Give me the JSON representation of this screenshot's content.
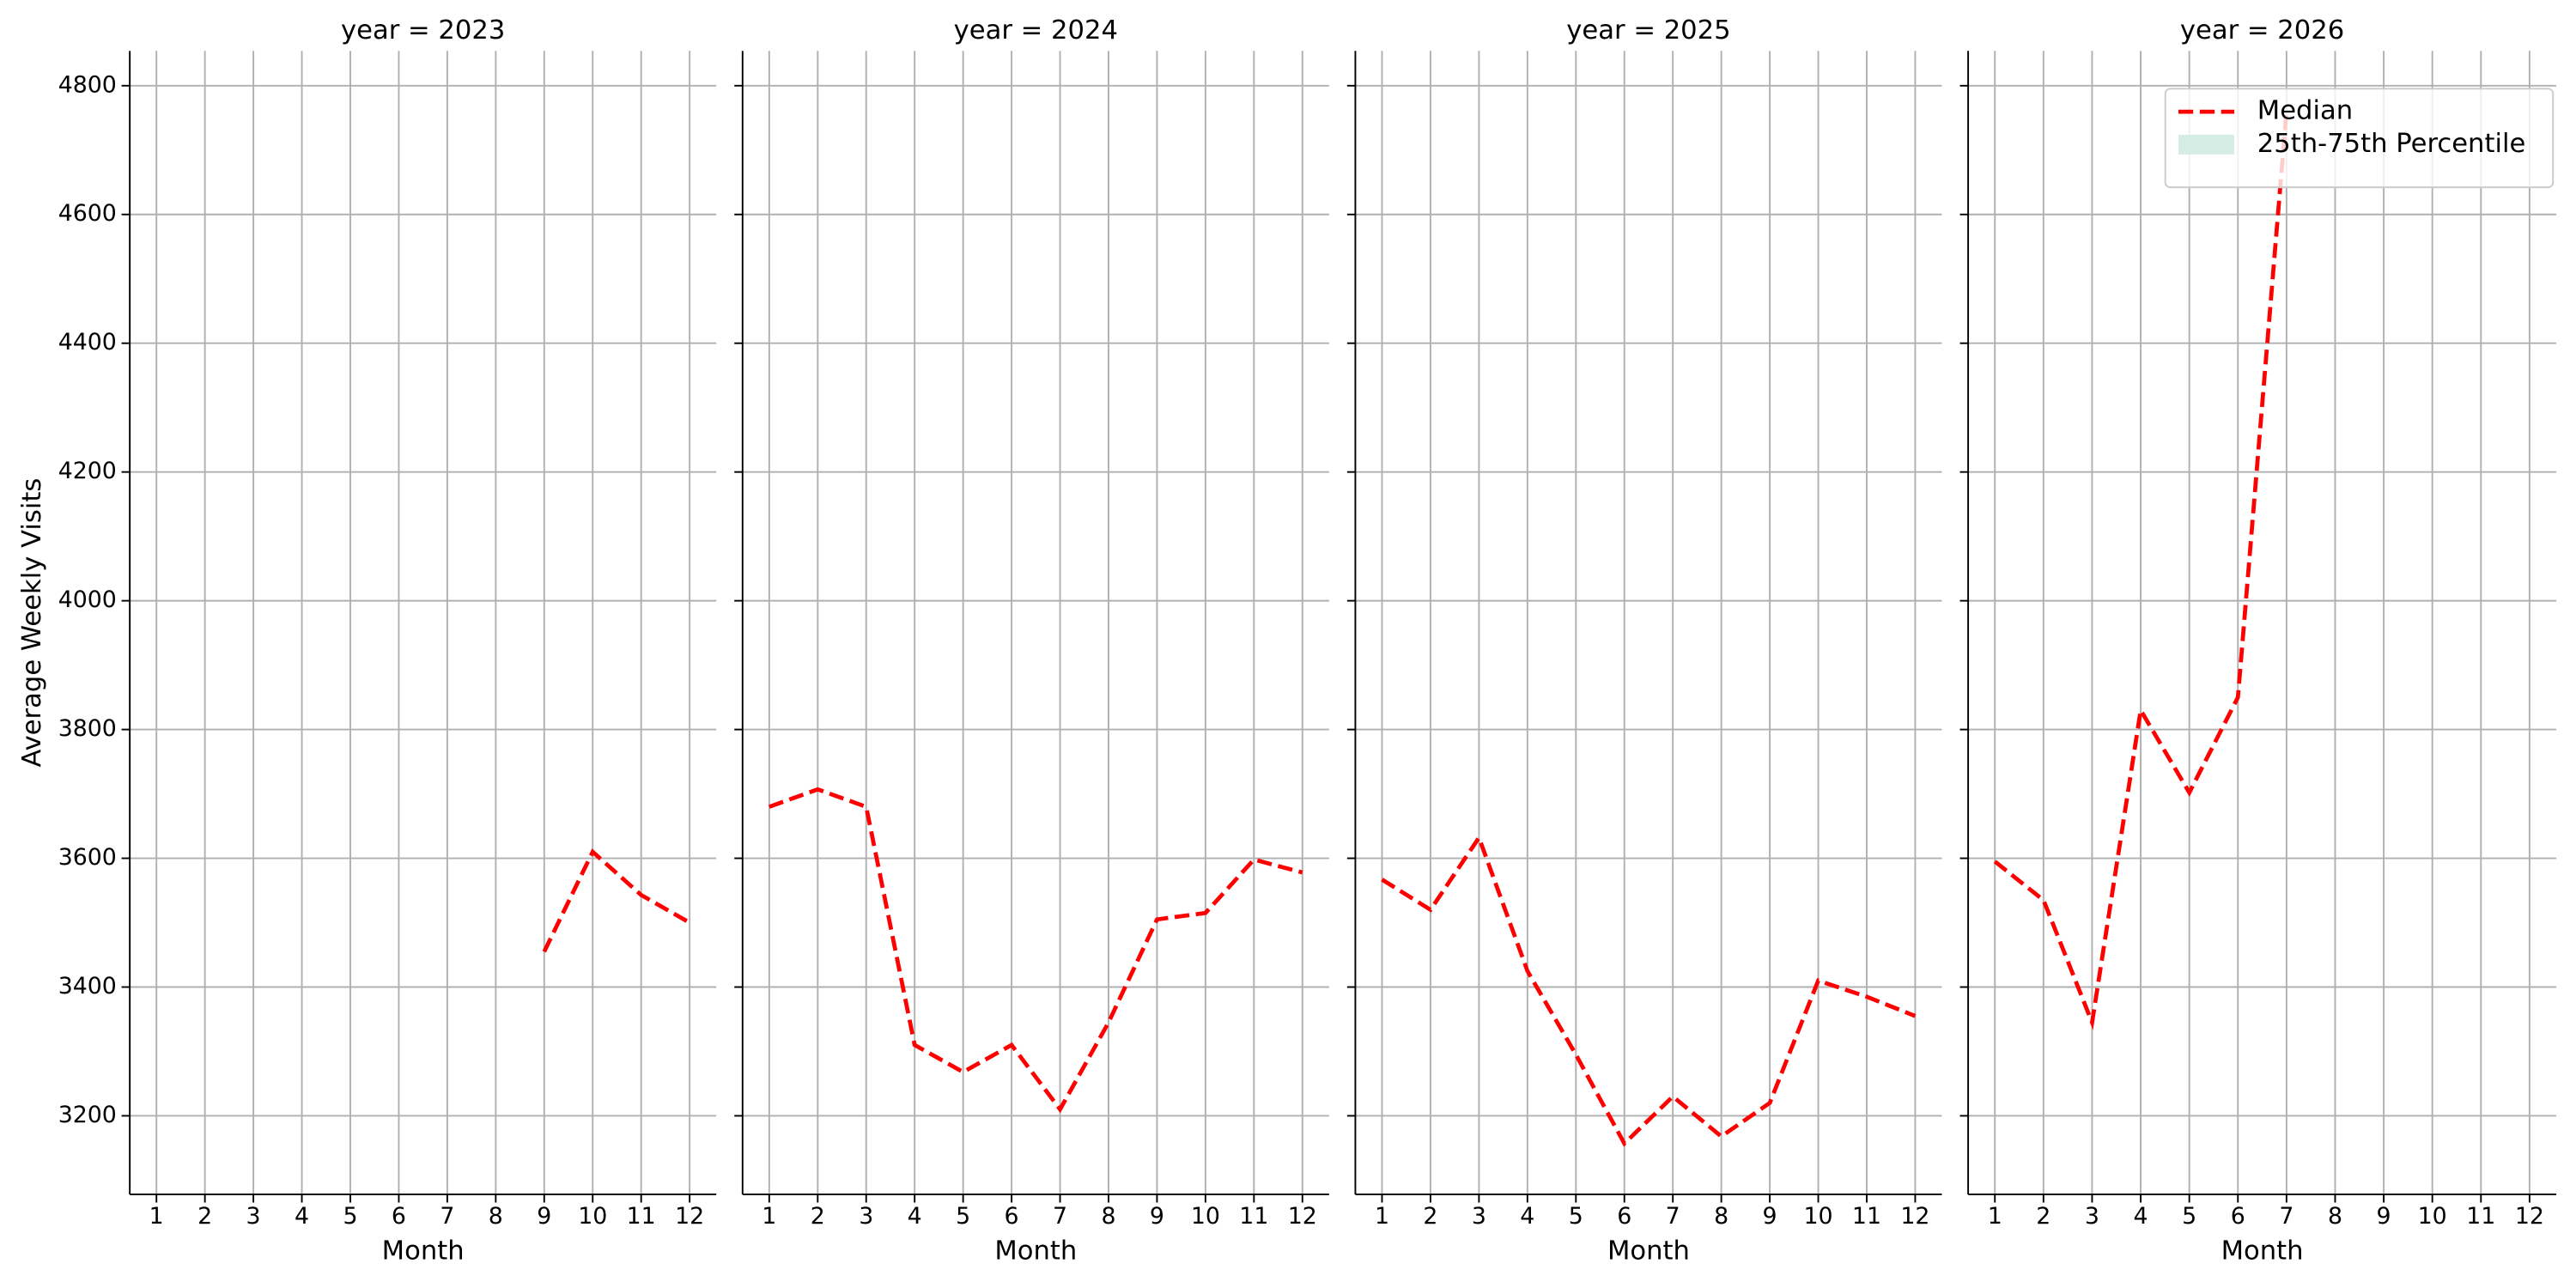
{
  "ylabel": "Average Weekly Visits",
  "chart_data": [
    {
      "type": "line",
      "title": "year = 2023",
      "xlabel": "Month",
      "x": [
        1,
        2,
        3,
        4,
        5,
        6,
        7,
        8,
        9,
        10,
        11,
        12
      ],
      "series": [
        {
          "name": "Median",
          "color": "#ff0000",
          "dashed": true,
          "values": [
            null,
            null,
            null,
            null,
            null,
            null,
            null,
            null,
            3455,
            3610,
            3543,
            3500
          ]
        }
      ],
      "xlim": [
        0.45,
        12.55
      ],
      "ylim": [
        3078,
        4854
      ],
      "xticks": [
        1,
        2,
        3,
        4,
        5,
        6,
        7,
        8,
        9,
        10,
        11,
        12
      ],
      "yticks": [
        3200,
        3400,
        3600,
        3800,
        4000,
        4200,
        4400,
        4600,
        4800
      ],
      "grid": true,
      "ytick_labels": true
    },
    {
      "type": "line",
      "title": "year = 2024",
      "xlabel": "Month",
      "x": [
        1,
        2,
        3,
        4,
        5,
        6,
        7,
        8,
        9,
        10,
        11,
        12
      ],
      "series": [
        {
          "name": "Median",
          "color": "#ff0000",
          "dashed": true,
          "values": [
            3680,
            3707,
            3680,
            3310,
            3268,
            3310,
            3210,
            3345,
            3505,
            3515,
            3598,
            3578
          ]
        }
      ],
      "xlim": [
        0.45,
        12.55
      ],
      "ylim": [
        3078,
        4854
      ],
      "xticks": [
        1,
        2,
        3,
        4,
        5,
        6,
        7,
        8,
        9,
        10,
        11,
        12
      ],
      "yticks": [
        3200,
        3400,
        3600,
        3800,
        4000,
        4200,
        4400,
        4600,
        4800
      ],
      "grid": true,
      "ytick_labels": false
    },
    {
      "type": "line",
      "title": "year = 2025",
      "xlabel": "Month",
      "x": [
        1,
        2,
        3,
        4,
        5,
        6,
        7,
        8,
        9,
        10,
        11,
        12
      ],
      "series": [
        {
          "name": "Median",
          "color": "#ff0000",
          "dashed": true,
          "values": [
            3567,
            3520,
            3632,
            3425,
            3295,
            3157,
            3230,
            3168,
            3220,
            3410,
            3385,
            3355
          ]
        }
      ],
      "xlim": [
        0.45,
        12.55
      ],
      "ylim": [
        3078,
        4854
      ],
      "xticks": [
        1,
        2,
        3,
        4,
        5,
        6,
        7,
        8,
        9,
        10,
        11,
        12
      ],
      "yticks": [
        3200,
        3400,
        3600,
        3800,
        4000,
        4200,
        4400,
        4600,
        4800
      ],
      "grid": true,
      "ytick_labels": false
    },
    {
      "type": "line",
      "title": "year = 2026",
      "xlabel": "Month",
      "x": [
        1,
        2,
        3,
        4,
        5,
        6,
        7,
        8,
        9,
        10,
        11,
        12
      ],
      "series": [
        {
          "name": "Median",
          "color": "#ff0000",
          "dashed": true,
          "values": [
            3595,
            3535,
            3345,
            3830,
            3702,
            3850,
            4760,
            null,
            null,
            null,
            null,
            null
          ]
        },
        {
          "name": "25th-75th Percentile",
          "color": "#d5ede4",
          "fill": true,
          "values": [
            null,
            null,
            null,
            null,
            null,
            null,
            null,
            null,
            null,
            null,
            null,
            null
          ]
        }
      ],
      "xlim": [
        0.45,
        12.55
      ],
      "ylim": [
        3078,
        4854
      ],
      "xticks": [
        1,
        2,
        3,
        4,
        5,
        6,
        7,
        8,
        9,
        10,
        11,
        12
      ],
      "yticks": [
        3200,
        3400,
        3600,
        3800,
        4000,
        4200,
        4400,
        4600,
        4800
      ],
      "grid": true,
      "ytick_labels": false,
      "legend": "upper right"
    }
  ]
}
